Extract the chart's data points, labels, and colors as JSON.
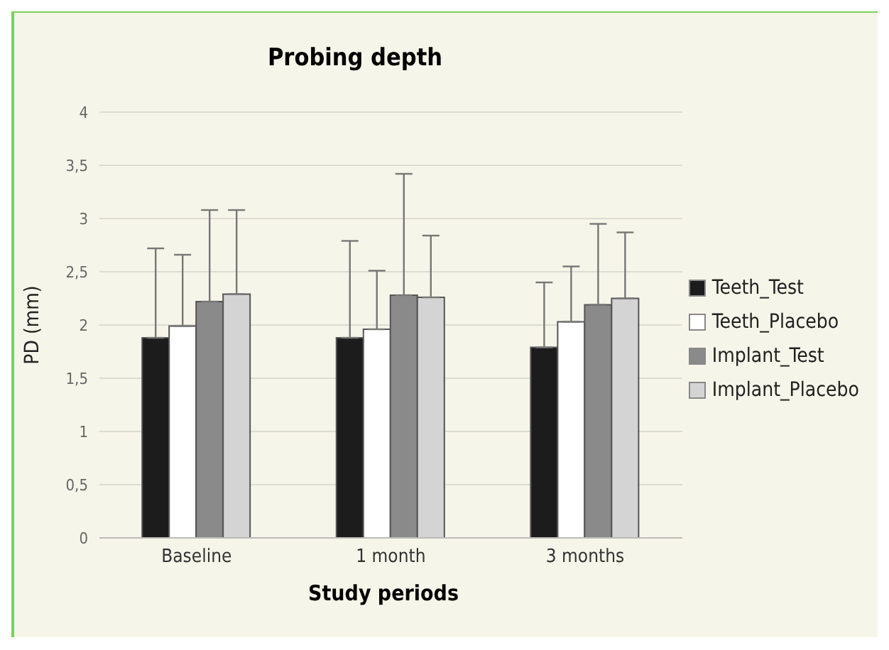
{
  "chart_data": {
    "type": "bar",
    "title": "Probing depth",
    "xlabel": "Study periods",
    "ylabel": "PD (mm)",
    "categories": [
      "Baseline",
      "1 month",
      "3 months"
    ],
    "series": [
      {
        "name": "Teeth_Test",
        "color": "#1c1c1c",
        "values": [
          1.88,
          1.88,
          1.79
        ],
        "errors": [
          [
            1.88,
            2.72
          ],
          [
            1.88,
            2.79
          ],
          [
            1.79,
            2.4
          ]
        ]
      },
      {
        "name": "Teeth_Placebo",
        "color": "#ffffff",
        "values": [
          1.99,
          1.96,
          2.03
        ],
        "errors": [
          [
            1.99,
            2.66
          ],
          [
            1.96,
            2.51
          ],
          [
            2.03,
            2.55
          ]
        ]
      },
      {
        "name": "Implant_Test",
        "color": "#8a8a8a",
        "values": [
          2.22,
          2.28,
          2.19
        ],
        "errors": [
          [
            2.22,
            3.08
          ],
          [
            2.28,
            3.42
          ],
          [
            2.19,
            2.95
          ]
        ]
      },
      {
        "name": "Implant_Placebo",
        "color": "#d4d4d4",
        "values": [
          2.29,
          2.26,
          2.25
        ],
        "errors": [
          [
            2.29,
            3.08
          ],
          [
            2.26,
            2.84
          ],
          [
            2.25,
            2.87
          ]
        ]
      }
    ],
    "ylim": [
      0,
      4
    ],
    "yticks": [
      0,
      {
        "value": 0.5,
        "label": "0,5"
      },
      1,
      {
        "value": 1.5,
        "label": "1,5"
      },
      2,
      {
        "value": 2.5,
        "label": "2,5"
      },
      3,
      {
        "value": 3.5,
        "label": "3,5"
      },
      4
    ],
    "grid": "y",
    "legend": "right"
  }
}
